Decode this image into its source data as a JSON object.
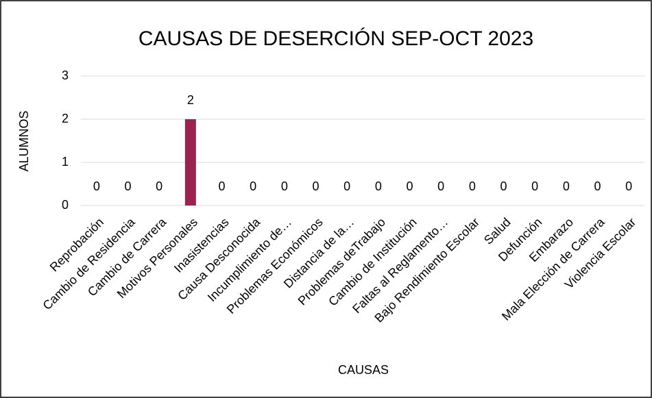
{
  "chart_data": {
    "type": "bar",
    "title": "CAUSAS DE DESERCIÓN SEP-OCT 2023",
    "x_label": "CAUSAS",
    "y_label": "ALUMNOS",
    "categories": [
      "Reprobación",
      "Cambio de Residencia",
      "Cambio de Carrera",
      "Motivos Personales",
      "Inasistencias",
      "Causa Desconocida",
      "Incumplimiento de…",
      "Problemas Económicos",
      "Distancia de la…",
      "Problemas deTrabajo",
      "Cambio de Institución",
      "Faltas al Reglamento…",
      "Bajo Rendimiento Escolar",
      "Salud",
      "Defunción",
      "Embarazo",
      "Mala Elección de Carrera",
      "Violencia Escolar"
    ],
    "values": [
      0,
      0,
      0,
      2,
      0,
      0,
      0,
      0,
      0,
      0,
      0,
      0,
      0,
      0,
      0,
      0,
      0,
      0
    ],
    "color": "#9b2350",
    "ylim": [
      0,
      3
    ],
    "yticks": [
      0,
      1,
      2,
      3
    ],
    "grid": true,
    "data_labels": true
  }
}
